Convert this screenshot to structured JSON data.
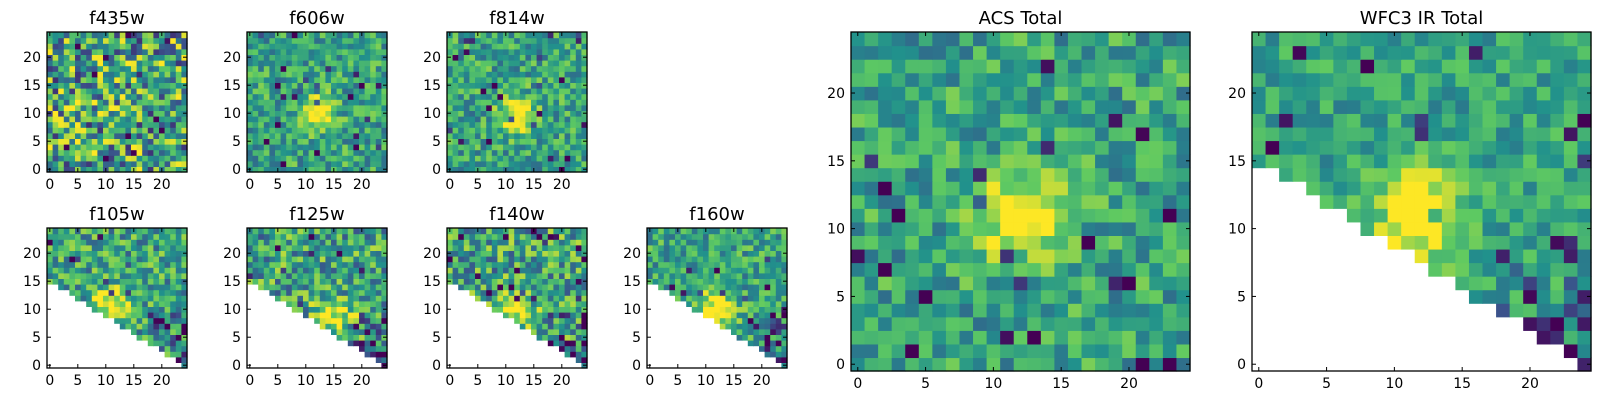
{
  "figure": {
    "colormap": [
      "#440154",
      "#3b528b",
      "#21918c",
      "#5ec962",
      "#fde725"
    ]
  },
  "chart_data": [
    {
      "type": "heatmap",
      "title": "f435w",
      "xlim": [
        0,
        24
      ],
      "ylim": [
        0,
        24
      ],
      "xticks": [
        0,
        5,
        10,
        15,
        20
      ],
      "yticks": [
        0,
        5,
        10,
        15,
        20
      ],
      "grid": false,
      "mask": "none",
      "seed": 11,
      "noise": 0.55,
      "blob_amp": 0.05,
      "blob": [
        12,
        11
      ]
    },
    {
      "type": "heatmap",
      "title": "f606w",
      "xlim": [
        0,
        24
      ],
      "ylim": [
        0,
        24
      ],
      "xticks": [
        0,
        5,
        10,
        15,
        20
      ],
      "yticks": [
        0,
        5,
        10,
        15,
        20
      ],
      "grid": false,
      "mask": "none",
      "seed": 23,
      "noise": 0.3,
      "blob_amp": 0.45,
      "blob": [
        12,
        10
      ]
    },
    {
      "type": "heatmap",
      "title": "f814w",
      "xlim": [
        0,
        24
      ],
      "ylim": [
        0,
        24
      ],
      "xticks": [
        0,
        5,
        10,
        15,
        20
      ],
      "yticks": [
        0,
        5,
        10,
        15,
        20
      ],
      "grid": false,
      "mask": "none",
      "seed": 37,
      "noise": 0.3,
      "blob_amp": 0.5,
      "blob": [
        12,
        10
      ]
    },
    {
      "type": "heatmap",
      "title": "f105w",
      "xlim": [
        0,
        24
      ],
      "ylim": [
        0,
        24
      ],
      "xticks": [
        0,
        5,
        10,
        15,
        20
      ],
      "yticks": [
        0,
        5,
        10,
        15,
        20
      ],
      "grid": false,
      "mask": "lower-left",
      "seed": 41,
      "noise": 0.35,
      "blob_amp": 0.5,
      "blob": [
        11,
        11
      ]
    },
    {
      "type": "heatmap",
      "title": "f125w",
      "xlim": [
        0,
        24
      ],
      "ylim": [
        0,
        24
      ],
      "xticks": [
        0,
        5,
        10,
        15,
        20
      ],
      "yticks": [
        0,
        5,
        10,
        15,
        20
      ],
      "grid": false,
      "mask": "lower-left",
      "seed": 53,
      "noise": 0.4,
      "blob_amp": 0.45,
      "blob": [
        15,
        9
      ]
    },
    {
      "type": "heatmap",
      "title": "f140w",
      "xlim": [
        0,
        24
      ],
      "ylim": [
        0,
        24
      ],
      "xticks": [
        0,
        5,
        10,
        15,
        20
      ],
      "yticks": [
        0,
        5,
        10,
        15,
        20
      ],
      "grid": false,
      "mask": "lower-left",
      "seed": 67,
      "noise": 0.4,
      "blob_amp": 0.45,
      "blob": [
        12,
        10
      ]
    },
    {
      "type": "heatmap",
      "title": "f160w",
      "xlim": [
        0,
        24
      ],
      "ylim": [
        0,
        24
      ],
      "xticks": [
        0,
        5,
        10,
        15,
        20
      ],
      "yticks": [
        0,
        5,
        10,
        15,
        20
      ],
      "grid": false,
      "mask": "lower-left",
      "seed": 79,
      "noise": 0.3,
      "blob_amp": 0.55,
      "blob": [
        12,
        10
      ]
    },
    {
      "type": "heatmap",
      "title": "ACS Total",
      "xlim": [
        0,
        24
      ],
      "ylim": [
        0,
        24
      ],
      "xticks": [
        0,
        5,
        10,
        15,
        20
      ],
      "yticks": [
        0,
        5,
        10,
        15,
        20
      ],
      "grid": false,
      "mask": "none",
      "seed": 83,
      "noise": 0.28,
      "blob_amp": 0.55,
      "blob": [
        12,
        11
      ]
    },
    {
      "type": "heatmap",
      "title": "WFC3 IR Total",
      "xlim": [
        0,
        24
      ],
      "ylim": [
        0,
        24
      ],
      "xticks": [
        0,
        5,
        10,
        15,
        20
      ],
      "yticks": [
        0,
        5,
        10,
        15,
        20
      ],
      "grid": false,
      "mask": "lower-left",
      "seed": 97,
      "noise": 0.22,
      "blob_amp": 0.6,
      "blob": [
        12,
        11
      ]
    }
  ]
}
